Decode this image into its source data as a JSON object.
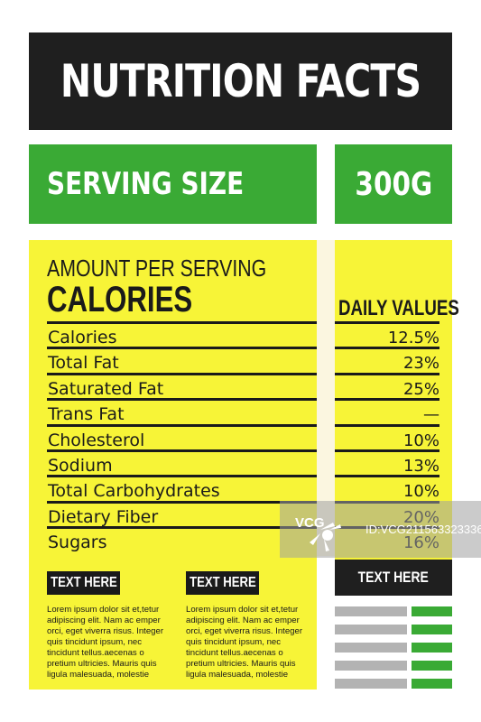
{
  "header": {
    "title": "NUTRITION FACTS"
  },
  "serving": {
    "label": "SERVING SIZE",
    "value": "300G"
  },
  "facts": {
    "amount_label": "AMOUNT PER SERVING",
    "calories_label": "CALORIES",
    "daily_values_label": "DAILY VALUES",
    "rows": [
      {
        "label": "Calories",
        "value": "12.5%"
      },
      {
        "label": "Total Fat",
        "value": "23%"
      },
      {
        "label": "Saturated Fat",
        "value": "25%"
      },
      {
        "label": "Trans Fat",
        "value": "—"
      },
      {
        "label": "Cholesterol",
        "value": "10%"
      },
      {
        "label": "Sodium",
        "value": "13%"
      },
      {
        "label": "Total Carbohydrates",
        "value": "10%"
      },
      {
        "label": "Dietary Fiber",
        "value": "20%"
      },
      {
        "label": "Sugars",
        "value": "16%"
      }
    ]
  },
  "text_blocks": [
    {
      "button": "TEXT HERE",
      "body": "Lorem ipsum dolor sit et,tetur adipiscing elit. Nam ac emper orci, eget viverra risus. Integer quis tincidunt ipsum, nec tincidunt tellus.aecenas o pretium ultricies. Mauris quis ligula malesuada, molestie"
    },
    {
      "button": "TEXT HERE",
      "body": "Lorem ipsum dolor sit et,tetur adipiscing elit. Nam ac emper orci, eget viverra risus. Integer quis tincidunt ipsum, nec tincidunt tellus.aecenas o pretium ultricies. Mauris quis ligula malesuada, molestie"
    }
  ],
  "side_button": "TEXT HERE",
  "watermark": {
    "brand": "VCG",
    "id_text": "ID:VCG211563323336"
  },
  "colors": {
    "dark": "#1f1f1f",
    "green": "#3aaa35",
    "yellow": "#f7f437",
    "grey": "#b3b3b3"
  }
}
